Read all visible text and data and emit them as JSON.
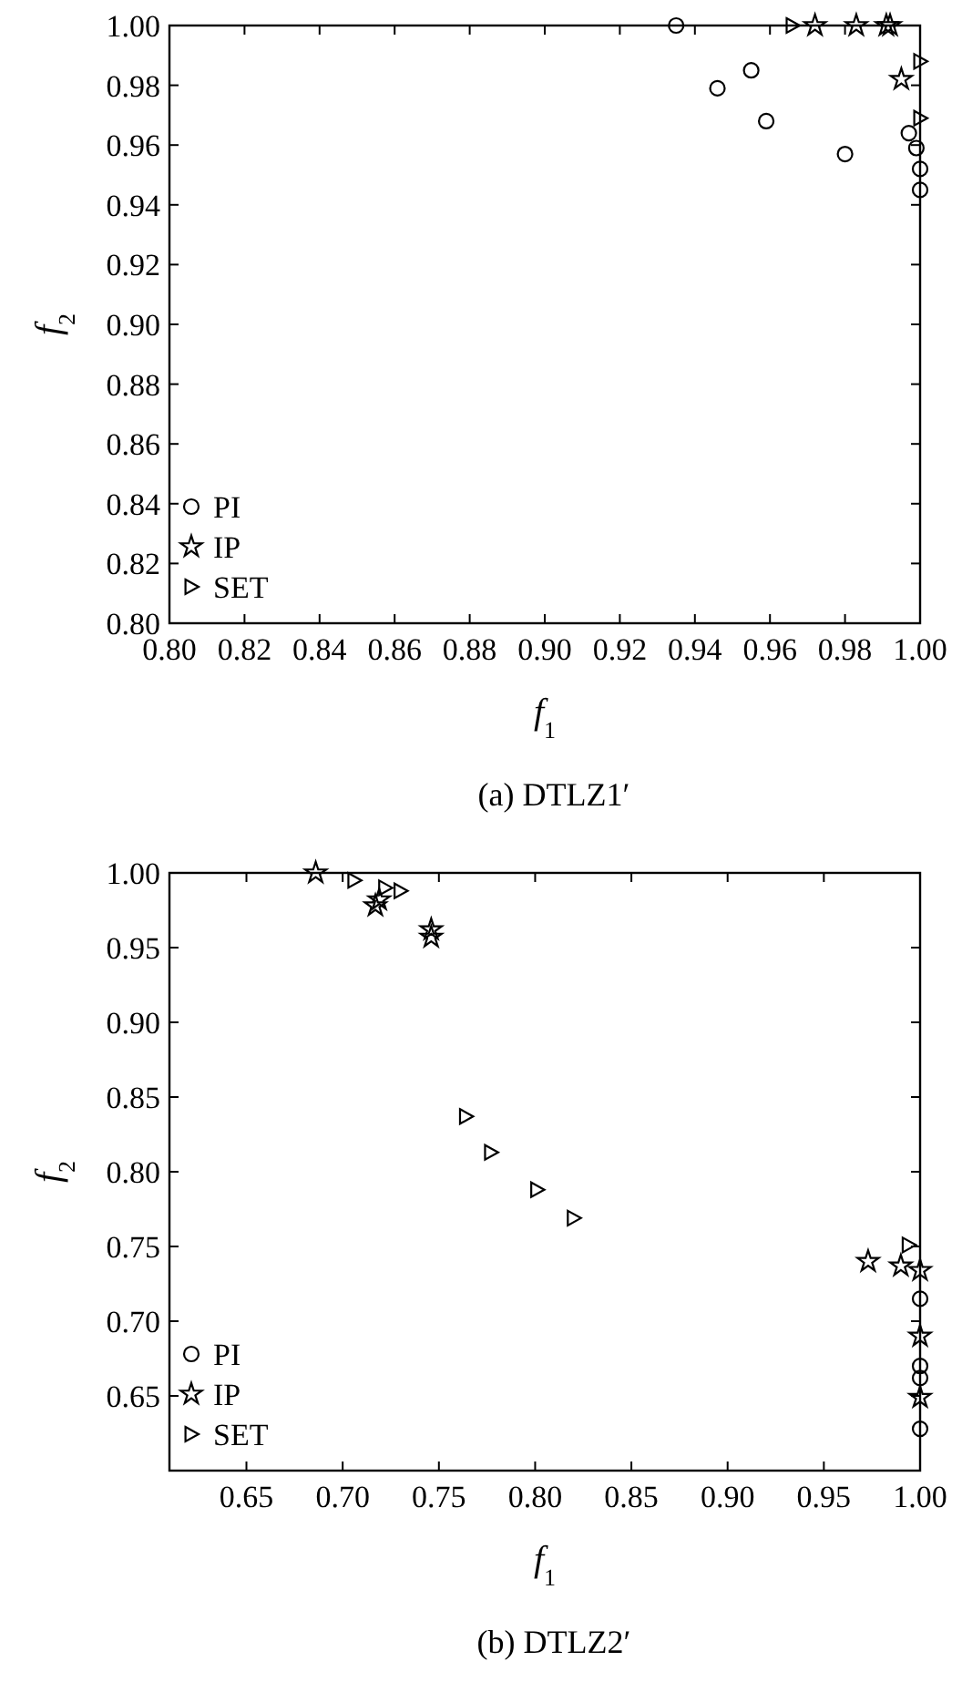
{
  "chart_data": [
    {
      "type": "scatter",
      "title": "(a)  DTLZ1′",
      "xlabel": "f$_{1}$",
      "ylabel": "f$_{2}$",
      "xlim": [
        0.8,
        1.0
      ],
      "ylim": [
        0.8,
        1.0
      ],
      "xticks": [
        {
          "value": 0.8,
          "label": "0.80"
        },
        {
          "value": 0.82,
          "label": "0.82"
        },
        {
          "value": 0.84,
          "label": "0.84"
        },
        {
          "value": 0.86,
          "label": "0.86"
        },
        {
          "value": 0.88,
          "label": "0.88"
        },
        {
          "value": 0.9,
          "label": "0.90"
        },
        {
          "value": 0.92,
          "label": "0.92"
        },
        {
          "value": 0.94,
          "label": "0.94"
        },
        {
          "value": 0.96,
          "label": "0.96"
        },
        {
          "value": 0.98,
          "label": "0.98"
        },
        {
          "value": 1.0,
          "label": "1.00"
        }
      ],
      "yticks": [
        {
          "value": 0.8,
          "label": "0.80"
        },
        {
          "value": 0.82,
          "label": "0.82"
        },
        {
          "value": 0.84,
          "label": "0.84"
        },
        {
          "value": 0.86,
          "label": "0.86"
        },
        {
          "value": 0.88,
          "label": "0.88"
        },
        {
          "value": 0.9,
          "label": "0.90"
        },
        {
          "value": 0.92,
          "label": "0.92"
        },
        {
          "value": 0.94,
          "label": "0.94"
        },
        {
          "value": 0.96,
          "label": "0.96"
        },
        {
          "value": 0.98,
          "label": "0.98"
        },
        {
          "value": 1.0,
          "label": "1.00"
        }
      ],
      "legend": "bottom left",
      "grid": false,
      "series": [
        {
          "name": "PI",
          "color": "#000000",
          "marker": "circle",
          "x": [
            0.935,
            0.946,
            0.955,
            0.959,
            0.98,
            0.997,
            0.999,
            1.0,
            1.0
          ],
          "values": [
            1.0,
            0.979,
            0.985,
            0.968,
            0.957,
            0.964,
            0.959,
            0.952,
            0.945
          ]
        },
        {
          "name": "IP",
          "color": "#000000",
          "marker": "star",
          "x": [
            0.972,
            0.983,
            0.991,
            0.992,
            0.995
          ],
          "values": [
            1.0,
            1.0,
            1.0,
            1.0,
            0.982
          ]
        },
        {
          "name": "SET",
          "color": "#000000",
          "marker": "triangle",
          "x": [
            0.966,
            1.0,
            1.0
          ],
          "values": [
            1.0,
            0.988,
            0.969
          ]
        }
      ]
    },
    {
      "type": "scatter",
      "title": "(b)  DTLZ2′",
      "xlabel": "f$_{1}$",
      "ylabel": "f$_{2}$",
      "xlim": [
        0.61,
        1.0
      ],
      "ylim": [
        0.6,
        1.0
      ],
      "xticks": [
        {
          "value": 0.65,
          "label": "0.65"
        },
        {
          "value": 0.7,
          "label": "0.70"
        },
        {
          "value": 0.75,
          "label": "0.75"
        },
        {
          "value": 0.8,
          "label": "0.80"
        },
        {
          "value": 0.85,
          "label": "0.85"
        },
        {
          "value": 0.9,
          "label": "0.90"
        },
        {
          "value": 0.95,
          "label": "0.95"
        },
        {
          "value": 1.0,
          "label": "1.00"
        }
      ],
      "yticks": [
        {
          "value": 0.65,
          "label": "0.65"
        },
        {
          "value": 0.7,
          "label": "0.70"
        },
        {
          "value": 0.75,
          "label": "0.75"
        },
        {
          "value": 0.8,
          "label": "0.80"
        },
        {
          "value": 0.85,
          "label": "0.85"
        },
        {
          "value": 0.9,
          "label": "0.90"
        },
        {
          "value": 0.95,
          "label": "0.95"
        },
        {
          "value": 1.0,
          "label": "1.00"
        }
      ],
      "legend": "bottom left",
      "grid": false,
      "series": [
        {
          "name": "PI",
          "color": "#000000",
          "marker": "circle",
          "x": [
            1.0,
            1.0,
            1.0,
            1.0
          ],
          "values": [
            0.715,
            0.67,
            0.662,
            0.628
          ]
        },
        {
          "name": "IP",
          "color": "#000000",
          "marker": "star",
          "x": [
            0.686,
            0.717,
            0.719,
            0.746,
            0.746,
            0.973,
            0.99,
            1.0,
            1.0,
            1.0
          ],
          "values": [
            1.0,
            0.978,
            0.982,
            0.962,
            0.957,
            0.74,
            0.737,
            0.734,
            0.69,
            0.649
          ]
        },
        {
          "name": "SET",
          "color": "#000000",
          "marker": "triangle",
          "x": [
            0.706,
            0.722,
            0.73,
            0.764,
            0.777,
            0.801,
            0.82,
            0.994
          ],
          "values": [
            0.995,
            0.99,
            0.988,
            0.837,
            0.813,
            0.788,
            0.769,
            0.751
          ]
        }
      ]
    }
  ]
}
